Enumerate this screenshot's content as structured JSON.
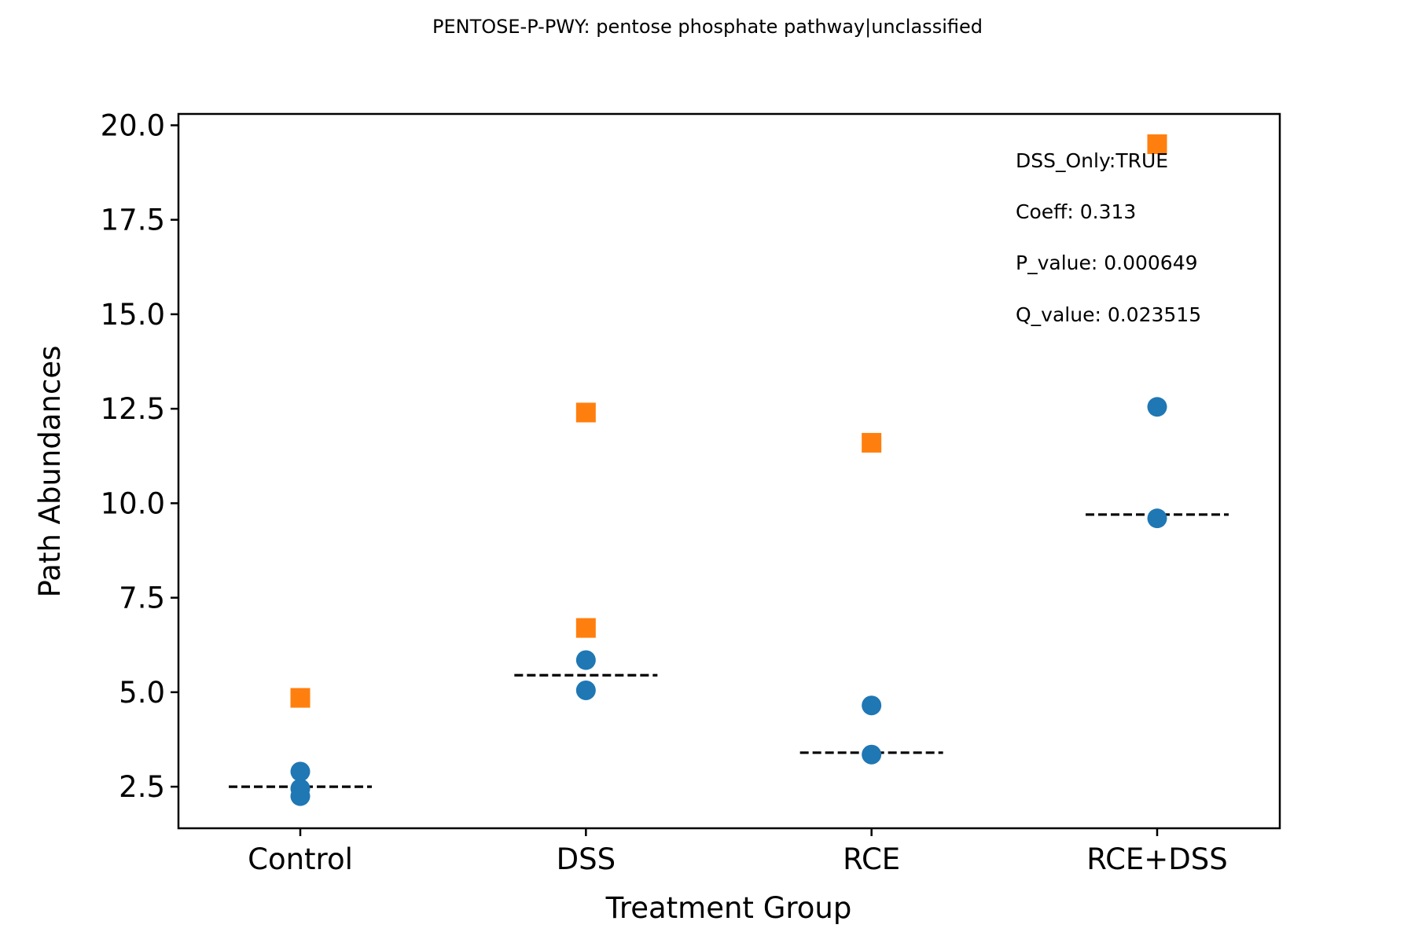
{
  "chart_data": {
    "type": "scatter",
    "title": "PENTOSE-P-PWY: pentose phosphate pathway|unclassified",
    "xlabel": "Treatment Group",
    "ylabel": "Path Abundances",
    "categories": [
      "Control",
      "DSS",
      "RCE",
      "RCE+DSS"
    ],
    "ylim": [
      1.4,
      20.3
    ],
    "yticks": [
      "2.5",
      "5.0",
      "7.5",
      "10.0",
      "12.5",
      "15.0",
      "17.5",
      "20.0"
    ],
    "grid": false,
    "series": [
      {
        "color": "#1f77b4",
        "marker": "circle",
        "points": [
          {
            "x": "Control",
            "y": 2.9
          },
          {
            "x": "Control",
            "y": 2.45
          },
          {
            "x": "Control",
            "y": 2.25
          },
          {
            "x": "DSS",
            "y": 5.85
          },
          {
            "x": "DSS",
            "y": 5.05
          },
          {
            "x": "RCE",
            "y": 4.65
          },
          {
            "x": "RCE",
            "y": 3.35
          },
          {
            "x": "RCE+DSS",
            "y": 12.55
          },
          {
            "x": "RCE+DSS",
            "y": 9.6
          }
        ]
      },
      {
        "color": "#ff7f0e",
        "marker": "square",
        "points": [
          {
            "x": "Control",
            "y": 4.85
          },
          {
            "x": "DSS",
            "y": 12.4
          },
          {
            "x": "DSS",
            "y": 6.7
          },
          {
            "x": "RCE",
            "y": 11.6
          },
          {
            "x": "RCE+DSS",
            "y": 19.5
          }
        ]
      }
    ],
    "medians": [
      {
        "x": "Control",
        "y": 2.5
      },
      {
        "x": "DSS",
        "y": 5.45
      },
      {
        "x": "RCE",
        "y": 3.4
      },
      {
        "x": "RCE+DSS",
        "y": 9.7
      }
    ],
    "annotations": [
      "DSS_Only:TRUE",
      "Coeff: 0.313",
      "P_value: 0.000649",
      "Q_value: 0.023515"
    ]
  }
}
